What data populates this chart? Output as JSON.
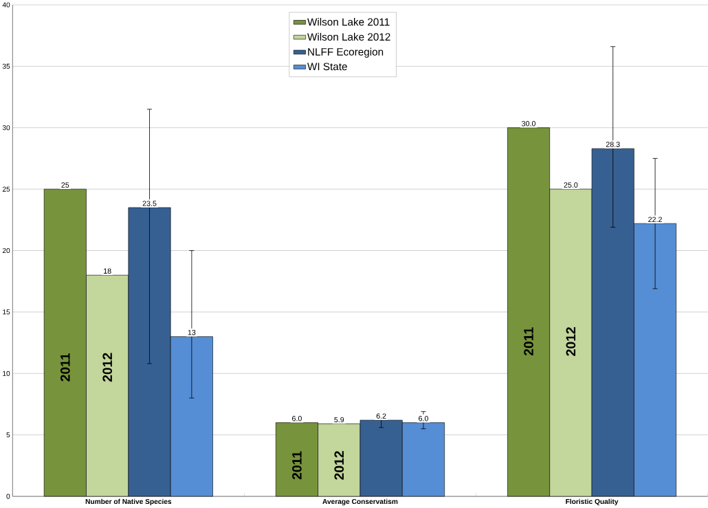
{
  "chart_data": {
    "type": "bar",
    "categories": [
      "Number of Native Species",
      "Average Conservatism",
      "Floristic Quality"
    ],
    "series": [
      {
        "name": "Wilson Lake 2011",
        "color": "#77933c",
        "values": [
          25,
          6.0,
          30.0
        ],
        "value_labels": [
          "25",
          "6.0",
          "30.0"
        ]
      },
      {
        "name": "Wilson Lake 2012",
        "color": "#c3d69b",
        "values": [
          18,
          5.9,
          25.0
        ],
        "value_labels": [
          "18",
          "5.9",
          "25.0"
        ]
      },
      {
        "name": "NLFF Ecoregion",
        "color": "#376092",
        "values": [
          23.5,
          6.2,
          28.3
        ],
        "value_labels": [
          "23.5",
          "6.2",
          "28.3"
        ],
        "errors": [
          [
            10.8,
            31.5
          ],
          [
            5.6,
            6.5
          ],
          [
            21.9,
            36.6
          ]
        ]
      },
      {
        "name": "WI State",
        "color": "#558ed5",
        "values": [
          13,
          6.0,
          22.2
        ],
        "value_labels": [
          "13",
          "6.0",
          "22.2"
        ],
        "errors": [
          [
            8.0,
            20.0
          ],
          [
            5.5,
            6.9
          ],
          [
            16.9,
            27.5
          ]
        ]
      }
    ],
    "ylim": [
      0,
      40
    ],
    "yticks": [
      0,
      5,
      10,
      15,
      20,
      25,
      30,
      35,
      40
    ],
    "grid": "y",
    "legend": "top",
    "annotations": [
      "2011",
      "2012",
      "2011",
      "2012",
      "2011",
      "2012"
    ]
  }
}
